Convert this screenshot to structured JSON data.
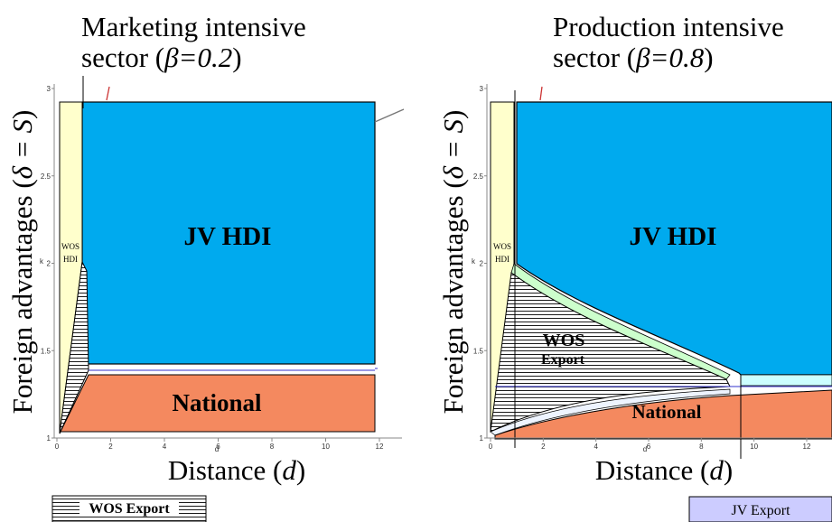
{
  "chart_data": [
    {
      "type": "area",
      "title_line1": "Marketing intensive",
      "title_line2": "sector (",
      "title_param": "β=0.2",
      "title_close": ")",
      "xlabel": "Distance (",
      "xlabel_var": "d",
      "xlabel_close": ")",
      "ylabel": "Foreign advantages (",
      "ylabel_var": "δ = S",
      "ylabel_close": ")",
      "x_small_label": "d",
      "y_small_label": "k",
      "xlim": [
        0,
        13
      ],
      "ylim": [
        1,
        3
      ],
      "x_ticks": [
        0,
        2,
        4,
        6,
        8,
        10,
        12
      ],
      "y_ticks": [
        1,
        1.5,
        2,
        2.5,
        3
      ],
      "regions": [
        {
          "name": "JV HDI",
          "color": "#00aaee"
        },
        {
          "name": "WOS HDI",
          "color": "#ffffcc"
        },
        {
          "name": "National",
          "color": "#f4895f"
        },
        {
          "name": "WOS Export",
          "color": "#ffffff"
        }
      ]
    },
    {
      "type": "area",
      "title_line1": "Production intensive",
      "title_line2": "sector (",
      "title_param": "β=0.8",
      "title_close": ")",
      "xlabel": "Distance (",
      "xlabel_var": "d",
      "xlabel_close": ")",
      "ylabel": "Foreign advantages (",
      "ylabel_var": "δ = S",
      "ylabel_close": ")",
      "x_small_label": "d",
      "y_small_label": "k",
      "xlim": [
        0,
        13
      ],
      "ylim": [
        1,
        3
      ],
      "x_ticks": [
        0,
        2,
        4,
        6,
        8,
        10,
        12
      ],
      "y_ticks": [
        1,
        1.5,
        2,
        2.5,
        3
      ],
      "regions": [
        {
          "name": "JV HDI",
          "color": "#00aaee"
        },
        {
          "name": "WOS HDI",
          "color": "#ffffcc"
        },
        {
          "name": "WOS Export",
          "color": "#ffffff"
        },
        {
          "name": "National",
          "color": "#f4895f"
        }
      ]
    }
  ],
  "labels": {
    "jv_hdi": "JV HDI",
    "national": "National",
    "wos": "WOS",
    "hdi": "HDI",
    "wos_line1": "WOS",
    "export_line2": "Export"
  },
  "legend": {
    "wos_export": "WOS Export",
    "jv_export": "JV Export",
    "jv_export_color": "#ccccff"
  }
}
